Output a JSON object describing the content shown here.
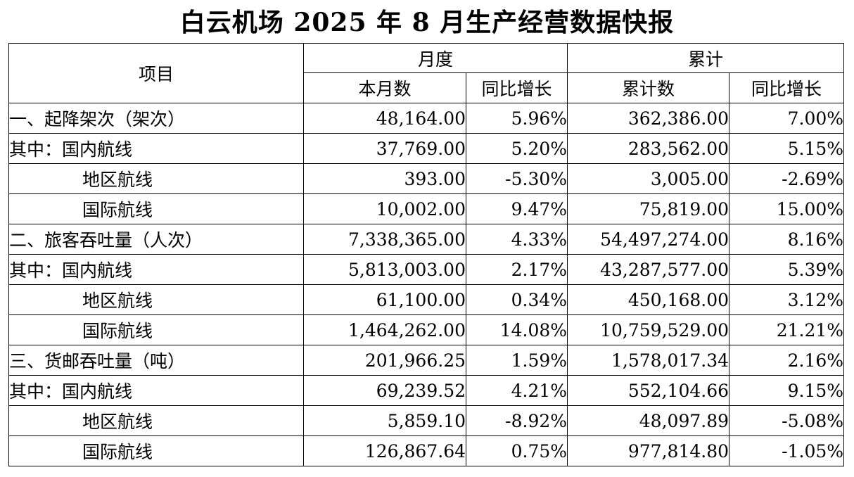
{
  "title": "白云机场 2025 年 8 月生产经营数据快报",
  "headers": {
    "item": "项目",
    "monthly": "月度",
    "cumulative": "累计",
    "monthly_value": "本月数",
    "monthly_yoy": "同比增长",
    "cumulative_value": "累计数",
    "cumulative_yoy": "同比增长"
  },
  "rows": [
    {
      "label": "一、起降架次（架次）",
      "monthly_value": "48,164.00",
      "monthly_yoy": "5.96%",
      "cumulative_value": "362,386.00",
      "cumulative_yoy": "7.00%"
    },
    {
      "label": "其中：国内航线",
      "monthly_value": "37,769.00",
      "monthly_yoy": "5.20%",
      "cumulative_value": "283,562.00",
      "cumulative_yoy": "5.15%"
    },
    {
      "label": "地区航线",
      "monthly_value": "393.00",
      "monthly_yoy": "-5.30%",
      "cumulative_value": "3,005.00",
      "cumulative_yoy": "-2.69%"
    },
    {
      "label": "国际航线",
      "monthly_value": "10,002.00",
      "monthly_yoy": "9.47%",
      "cumulative_value": "75,819.00",
      "cumulative_yoy": "15.00%"
    },
    {
      "label": "二、旅客吞吐量（人次）",
      "monthly_value": "7,338,365.00",
      "monthly_yoy": "4.33%",
      "cumulative_value": "54,497,274.00",
      "cumulative_yoy": "8.16%"
    },
    {
      "label": "其中：国内航线",
      "monthly_value": "5,813,003.00",
      "monthly_yoy": "2.17%",
      "cumulative_value": "43,287,577.00",
      "cumulative_yoy": "5.39%"
    },
    {
      "label": "地区航线",
      "monthly_value": "61,100.00",
      "monthly_yoy": "0.34%",
      "cumulative_value": "450,168.00",
      "cumulative_yoy": "3.12%"
    },
    {
      "label": "国际航线",
      "monthly_value": "1,464,262.00",
      "monthly_yoy": "14.08%",
      "cumulative_value": "10,759,529.00",
      "cumulative_yoy": "21.21%"
    },
    {
      "label": "三、货邮吞吐量（吨）",
      "monthly_value": "201,966.25",
      "monthly_yoy": "1.59%",
      "cumulative_value": "1,578,017.34",
      "cumulative_yoy": "2.16%"
    },
    {
      "label": "其中：国内航线",
      "monthly_value": "69,239.52",
      "monthly_yoy": "4.21%",
      "cumulative_value": "552,104.66",
      "cumulative_yoy": "9.15%"
    },
    {
      "label": "地区航线",
      "monthly_value": "5,859.10",
      "monthly_yoy": "-8.92%",
      "cumulative_value": "48,097.89",
      "cumulative_yoy": "-5.08%"
    },
    {
      "label": "国际航线",
      "monthly_value": "126,867.64",
      "monthly_yoy": "0.75%",
      "cumulative_value": "977,814.80",
      "cumulative_yoy": "-1.05%"
    }
  ]
}
